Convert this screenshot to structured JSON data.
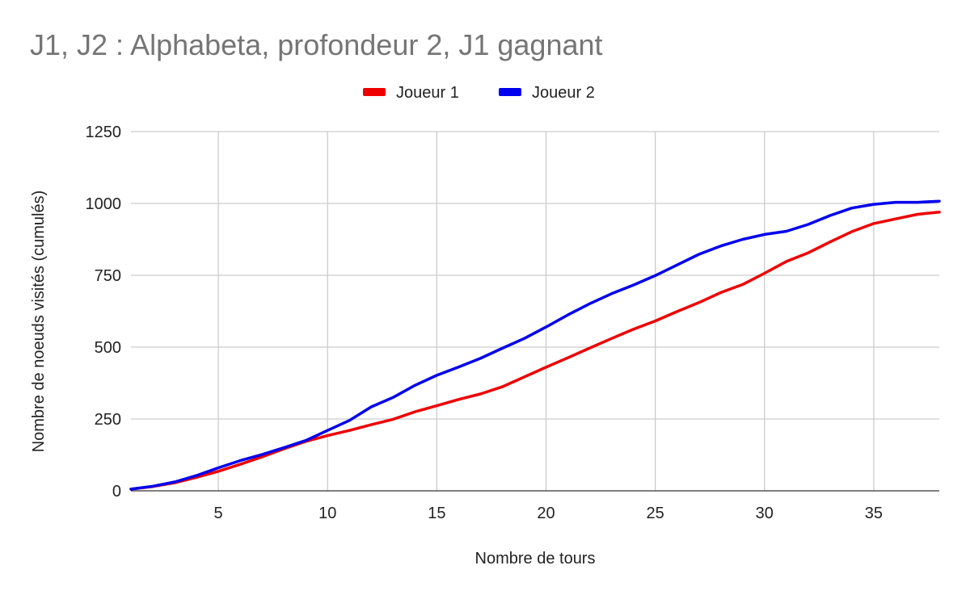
{
  "chart_data": {
    "type": "line",
    "title": "J1, J2 : Alphabeta, profondeur 2, J1 gagnant",
    "xlabel": "Nombre de tours",
    "ylabel": "Nombre de noeuds visités (cumulés)",
    "xlim": [
      1,
      38
    ],
    "ylim": [
      0,
      1250
    ],
    "xticks": [
      5,
      10,
      15,
      20,
      25,
      30,
      35
    ],
    "yticks": [
      0,
      250,
      500,
      750,
      1000,
      1250
    ],
    "grid": true,
    "legend_position": "top",
    "x": [
      1,
      2,
      3,
      4,
      5,
      6,
      7,
      8,
      9,
      10,
      11,
      12,
      13,
      14,
      15,
      16,
      17,
      18,
      19,
      20,
      21,
      22,
      23,
      24,
      25,
      26,
      27,
      28,
      29,
      30,
      31,
      32,
      33,
      34,
      35,
      36,
      37,
      38
    ],
    "series": [
      {
        "name": "Joueur 1",
        "color": "#ee0000",
        "values": [
          6,
          15,
          28,
          47,
          68,
          92,
          118,
          146,
          172,
          192,
          210,
          230,
          249,
          275,
          296,
          318,
          337,
          362,
          396,
          430,
          463,
          497,
          530,
          562,
          591,
          624,
          655,
          690,
          718,
          757,
          798,
          828,
          866,
          902,
          930,
          946,
          962,
          970
        ]
      },
      {
        "name": "Joueur 2",
        "color": "#0000ee",
        "values": [
          6,
          16,
          31,
          53,
          80,
          105,
          126,
          150,
          175,
          210,
          245,
          292,
          325,
          367,
          402,
          431,
          461,
          496,
          530,
          570,
          612,
          651,
          686,
          716,
          749,
          786,
          823,
          852,
          875,
          892,
          903,
          927,
          958,
          984,
          997,
          1004,
          1004,
          1008
        ]
      }
    ]
  }
}
